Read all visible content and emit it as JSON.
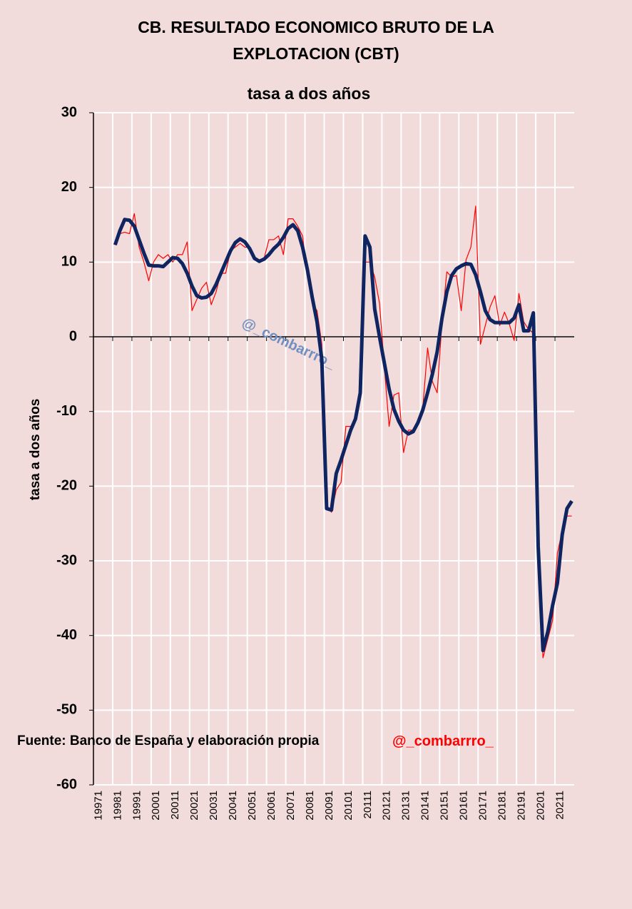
{
  "chart_data": {
    "type": "line",
    "title": "CB. RESULTADO ECONOMICO BRUTO DE LA EXPLOTACION (CBT)",
    "subtitle": "tasa a dos años",
    "y_label": "tasa a dos años",
    "watermark": "@_combarrro_",
    "source": "Fuente: Banco de España y elaboración propia",
    "handle": "@_combarrro_",
    "categories": [
      "19971",
      null,
      null,
      null,
      "19981",
      null,
      null,
      null,
      "19991",
      null,
      null,
      null,
      "20001",
      null,
      null,
      null,
      "20011",
      null,
      null,
      null,
      "20021",
      null,
      null,
      null,
      "20031",
      null,
      null,
      null,
      "20041",
      null,
      null,
      null,
      "20051",
      null,
      null,
      null,
      "20061",
      null,
      null,
      null,
      "20071",
      null,
      null,
      null,
      "20081",
      null,
      null,
      null,
      "20091",
      null,
      null,
      null,
      "20101",
      null,
      null,
      null,
      "20111",
      null,
      null,
      null,
      "20121",
      null,
      null,
      null,
      "20131",
      null,
      null,
      null,
      "20141",
      null,
      null,
      null,
      "20151",
      null,
      null,
      null,
      "20161",
      null,
      null,
      null,
      "20171",
      null,
      null,
      null,
      "20181",
      null,
      null,
      null,
      "20191",
      null,
      null,
      null,
      "20201",
      null,
      null,
      null,
      "20211",
      null,
      null,
      null
    ],
    "series": [
      {
        "color": "#ff0000",
        "width": 1.2,
        "values": [
          null,
          null,
          null,
          null,
          12.3,
          13.8,
          14,
          13.8,
          16.5,
          12,
          10,
          7.5,
          10,
          11,
          10.5,
          11,
          10,
          11,
          11,
          12.7,
          3.5,
          5,
          6.5,
          7.3,
          4.3,
          6,
          8.5,
          8.5,
          11.5,
          12,
          12.5,
          12,
          12,
          10.5,
          10,
          10.5,
          13,
          13,
          13.5,
          11,
          15.8,
          15.8,
          14.8,
          13.5,
          8,
          4.5,
          3.5,
          -1,
          -22.5,
          -23.5,
          -20.5,
          -19.5,
          -12,
          -12,
          -11,
          -8,
          10,
          10,
          8,
          4.5,
          -4,
          -12,
          -7.8,
          -7.5,
          -15.5,
          -12.5,
          -12.5,
          -11.5,
          -9.5,
          -1.5,
          -6,
          -7.5,
          2,
          8.7,
          8,
          8.2,
          3.5,
          10.3,
          12,
          17.5,
          -1,
          1.5,
          4,
          5.5,
          1.5,
          3.3,
          1.7,
          -0.5,
          5.8,
          2,
          1,
          0.5,
          -28,
          -43,
          -40.5,
          -38,
          -29,
          -26,
          -24,
          -24
        ]
      },
      {
        "color": "#0f2561",
        "width": 5,
        "values": [
          null,
          null,
          null,
          null,
          12.3,
          14.2,
          15.7,
          15.6,
          14.8,
          13,
          11.2,
          9.6,
          9.5,
          9.5,
          9.4,
          10,
          10.6,
          10.5,
          9.8,
          8.5,
          6.8,
          5.5,
          5.2,
          5.3,
          5.8,
          7,
          8.5,
          10,
          11.5,
          12.6,
          13.1,
          12.7,
          11.8,
          10.5,
          10.1,
          10.4,
          11,
          11.8,
          12.4,
          13.3,
          14.5,
          15,
          14.2,
          12,
          9,
          5.3,
          2,
          -3,
          -23,
          -23.2,
          -18.3,
          -16.5,
          -14.5,
          -12.5,
          -11,
          -7.5,
          13.5,
          12,
          3.7,
          0,
          -3.5,
          -7,
          -9.7,
          -11.3,
          -12.5,
          -13,
          -12.7,
          -11.5,
          -9.8,
          -7.5,
          -5,
          -2,
          2.5,
          6,
          8.2,
          9.1,
          9.5,
          9.8,
          9.7,
          8.3,
          6,
          3.5,
          2.3,
          1.9,
          1.9,
          1.9,
          1.9,
          2.5,
          4.3,
          0.8,
          0.8,
          3.2,
          -28,
          -42,
          -39.5,
          -36,
          -33,
          -26.5,
          -23,
          -22
        ]
      }
    ],
    "ylim": [
      -60,
      30
    ],
    "yticks": [
      -60,
      -50,
      -40,
      -30,
      -20,
      -10,
      0,
      10,
      20,
      30
    ],
    "grid": true
  }
}
